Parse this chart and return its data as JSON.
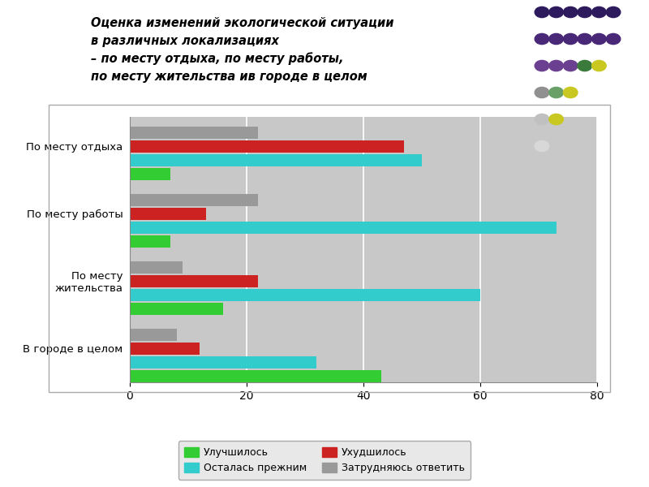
{
  "title_line1": "Оценка изменений экологической ситуации",
  "title_line2": "в различных локализациях",
  "title_line3": "– по месту отдыха, по месту работы,",
  "title_line4": "по месту жительства ив городе в целом",
  "categories": [
    "По месту отдыха",
    "По месту работы",
    "По месту\nжительства",
    "В городе в целом"
  ],
  "series_order": [
    "Улучшилось",
    "Осталась прежним",
    "Ухудшилось",
    "Затрудняюсь ответить"
  ],
  "series": {
    "Улучшилось": [
      7,
      7,
      16,
      43
    ],
    "Осталась прежним": [
      50,
      73,
      60,
      32
    ],
    "Ухудшилось": [
      47,
      13,
      22,
      12
    ],
    "Затрудняюсь ответить": [
      22,
      22,
      9,
      8
    ]
  },
  "colors": {
    "Улучшилось": "#33cc33",
    "Осталась прежним": "#33cccc",
    "Ухудшилось": "#cc2222",
    "Затрудняюсь ответить": "#999999"
  },
  "xlim": [
    0,
    80
  ],
  "xticks": [
    0,
    20,
    40,
    60,
    80
  ],
  "bar_height": 0.15,
  "chart_bg": "#c8c8c8",
  "figure_bg": "#ffffff",
  "dot_positions": [
    [
      6,
      6,
      6,
      6,
      6,
      6
    ],
    [
      6,
      6,
      6,
      6,
      6,
      6
    ],
    [
      5,
      5,
      5,
      4,
      3
    ],
    [
      4,
      3,
      2
    ],
    [
      2,
      1
    ],
    [
      1
    ]
  ],
  "dot_colors_rows": [
    [
      "#2d1b5e",
      "#2d1b5e",
      "#2d1b5e",
      "#2d1b5e",
      "#2d1b5e",
      "#2d1b5e"
    ],
    [
      "#4a2878",
      "#4a2878",
      "#4a2878",
      "#4a2878",
      "#4a2878",
      "#4a2878"
    ],
    [
      "#6b4090",
      "#6b4090",
      "#6b4090",
      "#3a7a3a",
      "#c8c820"
    ],
    [
      "#909090",
      "#68a068",
      "#c8c820"
    ],
    [
      "#c0c0c0",
      "#c8c820"
    ],
    [
      "#d8d8d8"
    ]
  ]
}
